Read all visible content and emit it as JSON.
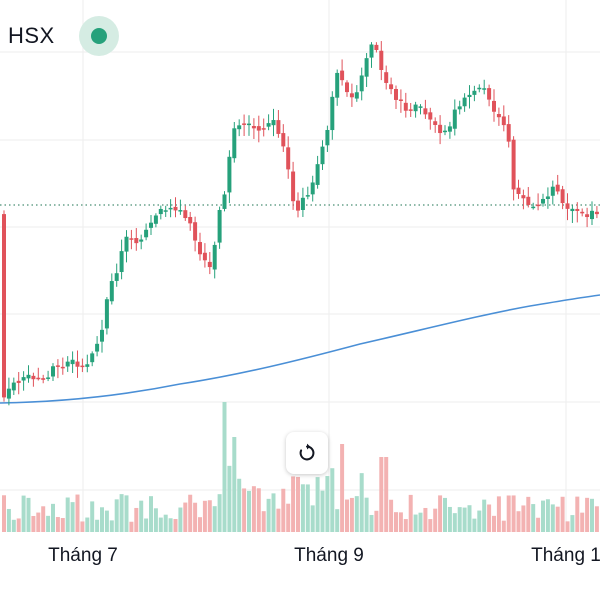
{
  "header": {
    "symbol": "HSX",
    "status": "market-open"
  },
  "controls": {
    "reset_icon": "reset-rotate-icon"
  },
  "colors": {
    "up": "#26a17b",
    "down": "#e0525a",
    "up_volume": "#a8dccb",
    "down_volume": "#f3b2b2",
    "moving_average": "#4a8fd6",
    "grid": "#eeeeee",
    "reference_line": "#4a8f74"
  },
  "chart_data": {
    "type": "candlestick",
    "x_axis": {
      "labels": [
        "Tháng 7",
        "Tháng 9",
        "Tháng 1"
      ]
    },
    "grid": true,
    "reference_line": "dotted-horizontal",
    "series": [
      {
        "kind": "candles"
      },
      {
        "kind": "volume"
      },
      {
        "kind": "moving-average"
      }
    ]
  }
}
